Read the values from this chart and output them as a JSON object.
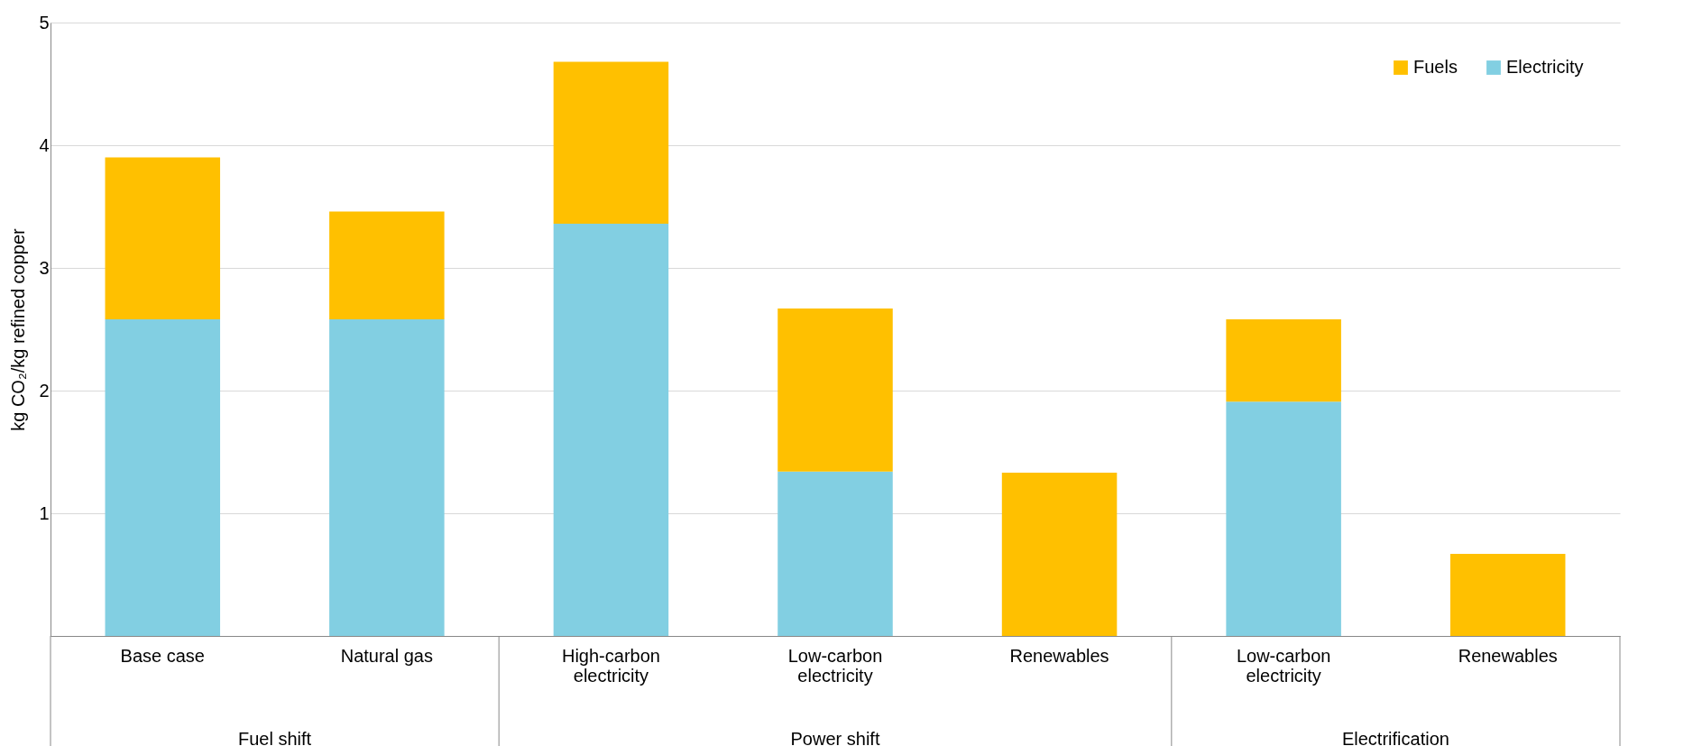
{
  "chart_data": {
    "type": "bar",
    "stacked": true,
    "ylabel": "kg CO₂/kg refined copper",
    "categories": [
      "Base case",
      "Natural gas",
      "High-carbon\nelectricity",
      "Low-carbon\nelectricity",
      "Renewables",
      "Low-carbon\nelectricity",
      "Renewables"
    ],
    "series": [
      {
        "name": "Electricity",
        "color": "#82cfe2",
        "values": [
          2.58,
          2.58,
          3.36,
          1.34,
          0,
          1.91,
          0
        ]
      },
      {
        "name": "Fuels",
        "color": "#ffc000",
        "values": [
          1.32,
          0.88,
          1.32,
          1.33,
          1.33,
          0.67,
          0.67
        ]
      }
    ],
    "ylim": [
      0,
      5
    ],
    "yticks": [
      {
        "value": 0,
        "label": null
      },
      1,
      2,
      3,
      4,
      5
    ],
    "grid": "y",
    "legend": "top right",
    "annotations": [
      "Fuel shift",
      "Power shift",
      "Electrification"
    ]
  }
}
